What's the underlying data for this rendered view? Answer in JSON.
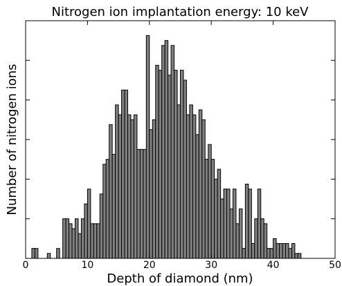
{
  "chart_data": {
    "type": "histogram",
    "title": "Nitrogen ion implantation energy: 10 keV",
    "x_label": "Depth of diamond (nm)",
    "y_label": "Number of nitrogen ions",
    "bins": [
      1,
      1.5,
      2,
      2.5,
      3,
      3.5,
      4,
      4.5,
      5,
      5.5,
      6,
      6.5,
      7,
      7.5,
      8,
      8.5,
      9,
      9.5,
      10,
      10.5,
      11,
      11.5,
      12,
      12.5,
      13,
      13.5,
      14,
      14.5,
      15,
      15.5,
      16,
      16.5,
      17,
      17.5,
      18,
      18.5,
      19,
      19.5,
      20,
      20.5,
      21,
      21.5,
      22,
      22.5,
      23,
      23.5,
      24,
      24.5,
      25,
      25.5,
      26,
      26.5,
      27,
      27.5,
      28,
      28.5,
      29,
      29.5,
      30,
      30.5,
      31,
      31.5,
      32,
      32.5,
      33,
      33.5,
      34,
      34.5,
      35,
      35.5,
      36,
      36.5,
      37,
      37.5,
      38,
      38.5,
      39,
      39.5,
      40,
      40.5,
      41,
      41.5,
      42,
      42.5,
      43,
      43.5,
      44,
      44.5
    ],
    "values": [
      2,
      2,
      0,
      0,
      0,
      1,
      0,
      0,
      2,
      0,
      8,
      8,
      7,
      6,
      8,
      5,
      8,
      11,
      14,
      7,
      7,
      7,
      13,
      19,
      20,
      27,
      21,
      31,
      29,
      34,
      34,
      29,
      28,
      29,
      22,
      22,
      22,
      45,
      26,
      28,
      39,
      38,
      43,
      44,
      37,
      43,
      38,
      31,
      38,
      36,
      29,
      31,
      29,
      25,
      30,
      28,
      20,
      23,
      20,
      16,
      18,
      12,
      14,
      14,
      10,
      14,
      7,
      10,
      2,
      15,
      14,
      3,
      8,
      14,
      8,
      7,
      2,
      2,
      4,
      3,
      3,
      3,
      3,
      2,
      3,
      1,
      1
    ],
    "color": "#808080",
    "xlim": [
      0,
      50
    ],
    "xticks": [
      0,
      10,
      20,
      30,
      40,
      50
    ],
    "ylim": [
      0,
      48
    ],
    "yticks": [
      0,
      8,
      16,
      24,
      32,
      40,
      48
    ]
  }
}
